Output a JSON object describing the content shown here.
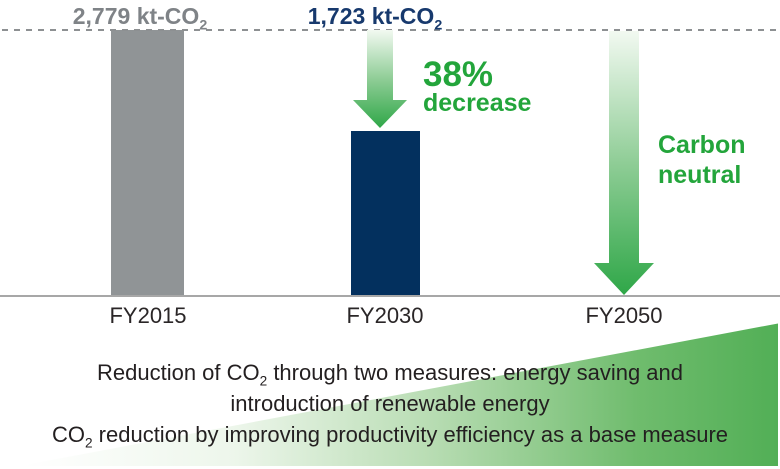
{
  "chart_data": {
    "type": "bar",
    "categories": [
      "FY2015",
      "FY2030",
      "FY2050"
    ],
    "values": [
      2779,
      1723,
      0
    ],
    "unit": "kt-CO2",
    "value_labels": [
      "2,779 kt-CO2",
      "1,723 kt-CO2",
      ""
    ],
    "ylim": [
      0,
      2779
    ],
    "grid": false,
    "baseline_value": 2779,
    "baseline_style": "dashed line at FY2015 level",
    "annotations": [
      {
        "target": "FY2030",
        "text": "38% decrease",
        "shape": "gradient-down-arrow"
      },
      {
        "target": "FY2050",
        "text": "Carbon neutral",
        "shape": "gradient-down-arrow-to-zero"
      }
    ],
    "bar_colors": [
      "#909496",
      "#03305e",
      null
    ]
  },
  "labels": {
    "fy2015_value": {
      "main": "2,779 kt-CO",
      "sub": "2"
    },
    "fy2030_value": {
      "main": "1,723 kt-CO",
      "sub": "2"
    },
    "decrease_pct": "38%",
    "decrease_word": "decrease",
    "carbon_line1": "Carbon",
    "carbon_line2": "neutral"
  },
  "caption": {
    "line1_main": "Reduction of CO",
    "line1_sub": "2",
    "line1_rest": " through two measures: energy saving and",
    "line2": "introduction of renewable energy",
    "line3_main": "CO",
    "line3_sub": "2",
    "line3_rest": " reduction by improving productivity efficiency as a base measure"
  },
  "colors": {
    "gray-bar": "#909496",
    "gray-text": "#7f8387",
    "navy-bar": "#03305e",
    "navy-text": "#17396d",
    "green-text": "#23a53b",
    "arrow-green": "#2fa748",
    "arrow-mid": "#8fcd96",
    "arrow-light": "#f2f9f1",
    "triangle-green": "#52af56",
    "axis-line": "#a7a7a7",
    "dash-line": "#8d9092",
    "tick-text": "#2a2627",
    "caption-text": "#231f20"
  }
}
